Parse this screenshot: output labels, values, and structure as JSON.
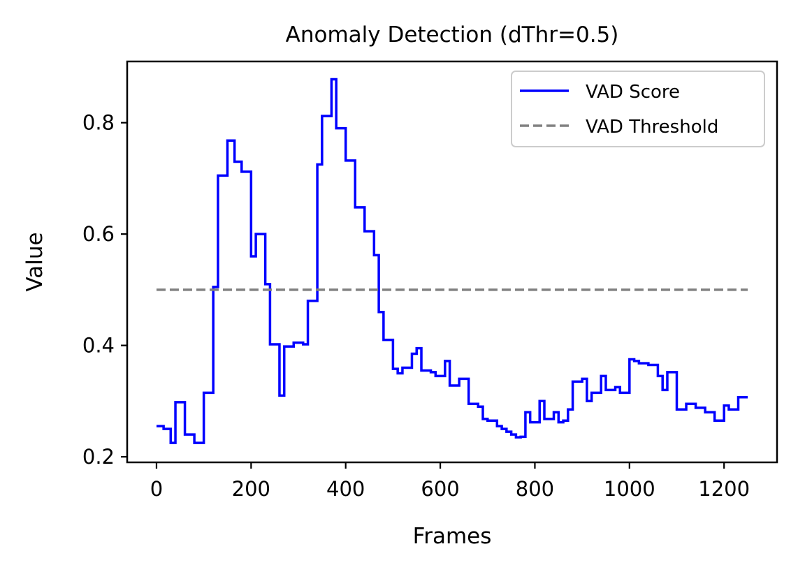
{
  "chart_data": {
    "type": "line",
    "title": "Anomaly Detection (dThr=0.5)",
    "xlabel": "Frames",
    "ylabel": "Value",
    "xlim": [
      -62,
      1312
    ],
    "ylim": [
      0.19,
      0.91
    ],
    "xticks": [
      0,
      200,
      400,
      600,
      800,
      1000,
      1200
    ],
    "yticks": [
      0.2,
      0.4,
      0.6,
      0.8
    ],
    "xtick_labels": [
      "0",
      "200",
      "400",
      "600",
      "800",
      "1000",
      "1200"
    ],
    "ytick_labels": [
      "0.2",
      "0.4",
      "0.6",
      "0.8"
    ],
    "grid": false,
    "legend_position": "top-right",
    "series": [
      {
        "name": "VAD Score",
        "color": "#0000ff",
        "style": "solid",
        "step": true,
        "x": [
          0,
          15,
          30,
          40,
          60,
          80,
          100,
          120,
          130,
          150,
          165,
          180,
          190,
          200,
          210,
          230,
          240,
          260,
          270,
          290,
          310,
          320,
          340,
          350,
          370,
          380,
          400,
          420,
          440,
          460,
          470,
          480,
          500,
          510,
          520,
          540,
          550,
          560,
          580,
          590,
          610,
          620,
          640,
          660,
          670,
          680,
          690,
          700,
          720,
          730,
          740,
          750,
          760,
          770,
          780,
          790,
          800,
          810,
          820,
          840,
          850,
          860,
          870,
          880,
          900,
          910,
          920,
          940,
          950,
          970,
          980,
          1000,
          1010,
          1020,
          1030,
          1040,
          1060,
          1070,
          1080,
          1100,
          1120,
          1140,
          1160,
          1180,
          1200,
          1210,
          1230,
          1250
        ],
        "y": [
          0.255,
          0.25,
          0.225,
          0.298,
          0.24,
          0.225,
          0.315,
          0.505,
          0.705,
          0.768,
          0.73,
          0.712,
          0.712,
          0.56,
          0.6,
          0.51,
          0.402,
          0.31,
          0.398,
          0.405,
          0.402,
          0.48,
          0.725,
          0.812,
          0.878,
          0.79,
          0.732,
          0.648,
          0.605,
          0.562,
          0.46,
          0.41,
          0.358,
          0.35,
          0.36,
          0.385,
          0.395,
          0.355,
          0.352,
          0.345,
          0.372,
          0.328,
          0.34,
          0.295,
          0.295,
          0.29,
          0.268,
          0.265,
          0.255,
          0.25,
          0.245,
          0.24,
          0.235,
          0.236,
          0.28,
          0.262,
          0.262,
          0.3,
          0.268,
          0.28,
          0.262,
          0.265,
          0.285,
          0.335,
          0.34,
          0.3,
          0.315,
          0.345,
          0.32,
          0.325,
          0.315,
          0.375,
          0.372,
          0.368,
          0.368,
          0.365,
          0.345,
          0.32,
          0.352,
          0.285,
          0.295,
          0.288,
          0.28,
          0.265,
          0.292,
          0.285,
          0.307,
          0.307
        ]
      },
      {
        "name": "VAD Threshold",
        "color": "#808080",
        "style": "dashed",
        "step": false,
        "x": [
          0,
          1250
        ],
        "y": [
          0.5,
          0.5
        ]
      }
    ]
  }
}
